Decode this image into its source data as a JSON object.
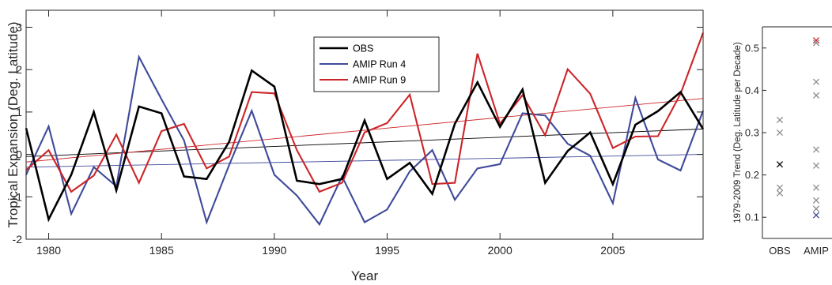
{
  "chart_data": [
    {
      "type": "line",
      "xlabel": "Year",
      "ylabel": "Tropical Expansion (Deg. Latitude)",
      "xlim": [
        1979,
        2009
      ],
      "ylim": [
        -2,
        3.4
      ],
      "xticks": [
        1980,
        1985,
        1990,
        1995,
        2000,
        2005
      ],
      "yticks": [
        -2,
        -1,
        0,
        1,
        2,
        3
      ],
      "grid": false,
      "legend_position": "top-center",
      "x": [
        1979,
        1980,
        1981,
        1982,
        1983,
        1984,
        1985,
        1986,
        1987,
        1988,
        1989,
        1990,
        1991,
        1992,
        1993,
        1994,
        1995,
        1996,
        1997,
        1998,
        1999,
        2000,
        2001,
        2002,
        2003,
        2004,
        2005,
        2006,
        2007,
        2008,
        2009
      ],
      "series": [
        {
          "name": "OBS",
          "color": "#000000",
          "values": [
            0.62,
            -1.53,
            -0.48,
            1.0,
            -0.85,
            1.13,
            0.97,
            -0.52,
            -0.58,
            0.3,
            1.98,
            1.6,
            -0.62,
            -0.7,
            -0.58,
            0.8,
            -0.58,
            -0.2,
            -0.93,
            0.72,
            1.7,
            0.65,
            1.53,
            -0.67,
            0.08,
            0.52,
            -0.7,
            0.7,
            1.02,
            1.47,
            0.6
          ],
          "trend": [
            -0.05,
            0.6
          ]
        },
        {
          "name": "AMIP Run 4",
          "color": "#3f4a9a",
          "values": [
            -0.48,
            0.66,
            -1.4,
            -0.3,
            -0.75,
            2.3,
            1.3,
            0.33,
            -1.6,
            -0.25,
            1.03,
            -0.48,
            -0.97,
            -1.65,
            -0.52,
            -1.6,
            -1.3,
            -0.4,
            0.1,
            -1.07,
            -0.33,
            -0.23,
            0.97,
            0.92,
            0.25,
            -0.03,
            -1.15,
            1.33,
            -0.12,
            -0.38,
            1.03
          ],
          "trend": [
            -0.3,
            0.0
          ]
        },
        {
          "name": "AMIP Run 9",
          "color": "#cc2529",
          "values": [
            -0.37,
            0.1,
            -0.88,
            -0.5,
            0.47,
            -0.67,
            0.55,
            0.72,
            -0.33,
            -0.05,
            1.47,
            1.44,
            0.1,
            -0.88,
            -0.67,
            0.52,
            0.74,
            1.41,
            -0.7,
            -0.67,
            2.38,
            0.72,
            1.4,
            0.45,
            2.01,
            1.43,
            0.15,
            0.42,
            0.43,
            1.43,
            2.87
          ],
          "trend": [
            -0.18,
            1.32
          ]
        }
      ]
    },
    {
      "type": "scatter",
      "xlabel": "",
      "ylabel": "1979-2009 Trend (Deg. Latitude per Decade)",
      "categories": [
        "OBS",
        "AMIP"
      ],
      "ylim": [
        0.05,
        0.55
      ],
      "yticks": [
        0.1,
        0.2,
        0.3,
        0.4,
        0.5
      ],
      "grid": false,
      "points": [
        {
          "category": "OBS",
          "value": 0.33,
          "color": "#8c8c8c"
        },
        {
          "category": "OBS",
          "value": 0.3,
          "color": "#8c8c8c"
        },
        {
          "category": "OBS",
          "value": 0.225,
          "color": "#000000"
        },
        {
          "category": "OBS",
          "value": 0.17,
          "color": "#8c8c8c"
        },
        {
          "category": "OBS",
          "value": 0.157,
          "color": "#8c8c8c"
        },
        {
          "category": "AMIP",
          "value": 0.518,
          "color": "#cc2529"
        },
        {
          "category": "AMIP",
          "value": 0.512,
          "color": "#8c8c8c"
        },
        {
          "category": "AMIP",
          "value": 0.42,
          "color": "#8c8c8c"
        },
        {
          "category": "AMIP",
          "value": 0.388,
          "color": "#8c8c8c"
        },
        {
          "category": "AMIP",
          "value": 0.26,
          "color": "#8c8c8c"
        },
        {
          "category": "AMIP",
          "value": 0.222,
          "color": "#8c8c8c"
        },
        {
          "category": "AMIP",
          "value": 0.17,
          "color": "#8c8c8c"
        },
        {
          "category": "AMIP",
          "value": 0.14,
          "color": "#8c8c8c"
        },
        {
          "category": "AMIP",
          "value": 0.12,
          "color": "#8c8c8c"
        },
        {
          "category": "AMIP",
          "value": 0.105,
          "color": "#3f4a9a"
        }
      ]
    }
  ]
}
